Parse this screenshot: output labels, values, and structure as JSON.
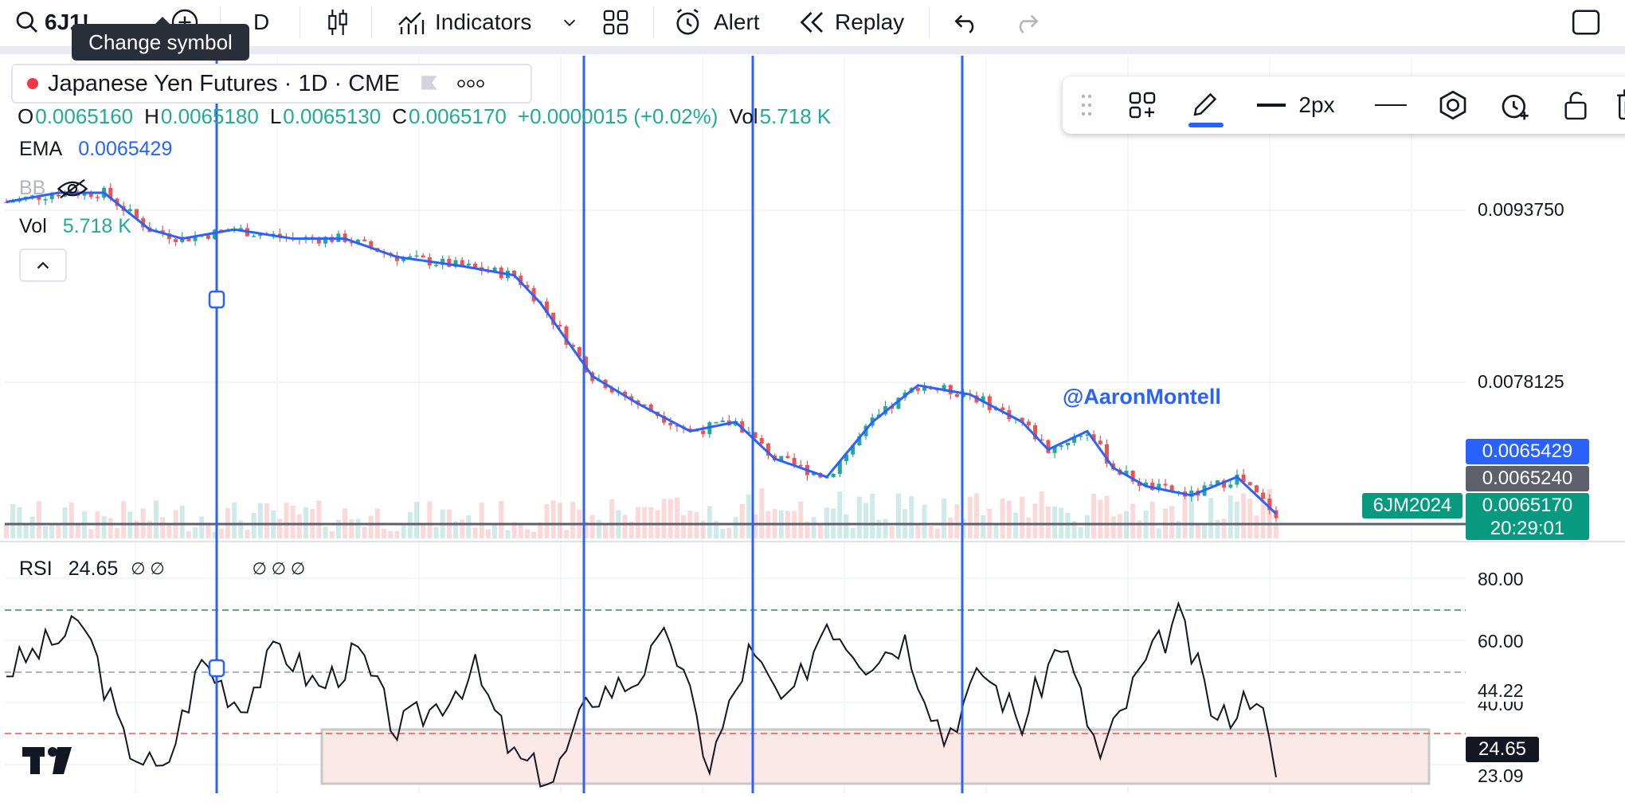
{
  "toolbar": {
    "symbol": "6J1!",
    "interval": "D",
    "indicators_label": "Indicators",
    "alert_label": "Alert",
    "replay_label": "Replay",
    "tooltip": "Change symbol"
  },
  "legend": {
    "title": "Japanese Yen Futures · 1D · CME",
    "ohlc": [
      {
        "label": "O",
        "value": "0.0065160"
      },
      {
        "label": "H",
        "value": "0.0065180"
      },
      {
        "label": "L",
        "value": "0.0065130"
      },
      {
        "label": "C",
        "value": "0.0065170"
      }
    ],
    "change": "+0.0000015 (+0.02%)",
    "vol_label": "Vol",
    "vol_value": "5.718 K",
    "ema_label": "EMA",
    "ema_value": "0.0065429",
    "bb_label": "BB",
    "vol2_label": "Vol",
    "vol2_value": "5.718 K"
  },
  "drawing_toolbar": {
    "width_label": "2px"
  },
  "watermark": "@AaronMontell",
  "price_axis": {
    "ticks": [
      "0.0093750",
      "0.0078125"
    ],
    "ema_badge": "0.0065429",
    "level_badge": "0.0065240",
    "last_badge": "0.0065170",
    "countdown": "20:29:01",
    "symbol_badge": "6JM2024"
  },
  "rsi": {
    "label": "RSI",
    "value": "24.65",
    "na_a": "∅ ∅",
    "na_b": "∅ ∅ ∅",
    "ticks": [
      "80.00",
      "60.00",
      "44.22",
      "40.00",
      "23.09"
    ],
    "badge": "24.65"
  },
  "colors": {
    "accent": "#2962ff",
    "up": "#26a69a",
    "down": "#ef5350",
    "badge_teal": "#089981",
    "badge_gray": "#5d606b"
  },
  "chart_data": {
    "type": "line",
    "price_series": {
      "name": "Japanese Yen Futures",
      "x_index": [
        0,
        8,
        15,
        22,
        27,
        35,
        44,
        52,
        60,
        70,
        78,
        82,
        90,
        97,
        105,
        112,
        118,
        126,
        133,
        140,
        148,
        156,
        160,
        166,
        170,
        175,
        182,
        189,
        195
      ],
      "close": [
        0.0099,
        0.01,
        0.01,
        0.0096,
        0.0095,
        0.0096,
        0.0095,
        0.0095,
        0.0093,
        0.0092,
        0.0091,
        0.0088,
        0.008,
        0.0077,
        0.0074,
        0.0075,
        0.0071,
        0.0069,
        0.0075,
        0.0079,
        0.0078,
        0.0075,
        0.0072,
        0.0074,
        0.007,
        0.0068,
        0.0067,
        0.0069,
        0.0065
      ]
    },
    "ema_series": {
      "name": "EMA",
      "value": [
        0.0099,
        0.01,
        0.01,
        0.0096,
        0.0095,
        0.0096,
        0.0095,
        0.0095,
        0.0093,
        0.0092,
        0.0091,
        0.0088,
        0.008,
        0.0077,
        0.0074,
        0.0075,
        0.0071,
        0.0069,
        0.0075,
        0.0079,
        0.0078,
        0.0075,
        0.0072,
        0.0074,
        0.007,
        0.0068,
        0.0067,
        0.0069,
        0.0065
      ]
    },
    "rsi_series": {
      "name": "RSI",
      "x_index": [
        0,
        6,
        12,
        18,
        24,
        30,
        36,
        42,
        48,
        54,
        60,
        66,
        72,
        78,
        84,
        90,
        96,
        102,
        108,
        114,
        120,
        126,
        132,
        138,
        144,
        150,
        156,
        162,
        168,
        174,
        180,
        186,
        192,
        195
      ],
      "value": [
        55,
        62,
        68,
        35,
        25,
        58,
        45,
        62,
        50,
        60,
        38,
        45,
        55,
        30,
        24,
        48,
        52,
        65,
        28,
        60,
        44,
        70,
        58,
        64,
        36,
        55,
        40,
        64,
        30,
        54,
        70,
        40,
        50,
        24.65
      ]
    },
    "price_ylim": [
      0.0063,
      0.0104
    ],
    "rsi_ylim": [
      21,
      84
    ],
    "rsi_bands": [
      70,
      50,
      30
    ],
    "grid": true
  }
}
